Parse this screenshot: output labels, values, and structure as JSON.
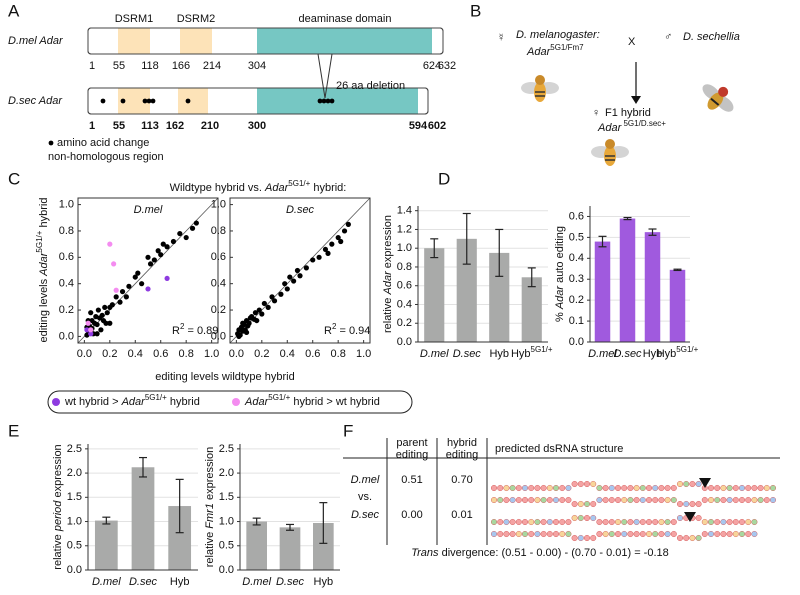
{
  "panel_labels": [
    "A",
    "B",
    "C",
    "D",
    "E",
    "F"
  ],
  "panel_a": {
    "domains": [
      "DSRM1",
      "DSRM2",
      "deaminase domain"
    ],
    "genes": [
      {
        "name": "D.mel Adar",
        "positions": [
          1,
          55,
          118,
          166,
          214,
          304,
          624,
          632
        ]
      },
      {
        "name": "D.sec Adar",
        "positions": [
          1,
          55,
          113,
          162,
          210,
          300,
          594,
          602
        ]
      }
    ],
    "deletion": "26 aa deletion",
    "legend": [
      "amino acid change",
      "non-homologous region"
    ]
  },
  "panel_b": {
    "parent1_symbol": "☿",
    "parent1_species": "D. melanogaster:",
    "parent1_genotype": [
      "Adar",
      "5G1/Fm7"
    ],
    "cross": "X",
    "parent2_symbol": "♂",
    "parent2_species": "D. sechellia",
    "offspring_symbol": "♀",
    "offspring": "F1 hybrid",
    "offspring_genotype": [
      "Adar",
      " 5G1/D.sec+"
    ]
  },
  "panel_c": {
    "title": [
      "Wildtype hybrid vs. ",
      "Adar",
      "5G1/+",
      " hybrid:"
    ],
    "ylabel": [
      "editing levels ",
      "Adar",
      "5G1/+",
      " hybrid"
    ],
    "xlabel": "editing levels wildtype hybrid",
    "legend": [
      {
        "color": "#8e3be0",
        "text": [
          "wt hybrid > ",
          "Adar",
          "5G1/+",
          " hybrid"
        ]
      },
      {
        "color": "#f48cf0",
        "text": [
          "Adar",
          "5G1/+",
          " hybrid > wt hybrid"
        ]
      }
    ]
  },
  "chart_data": [
    {
      "type": "scatter",
      "subtitle": "D.mel",
      "annotation": [
        "R",
        "2",
        " = 0.89"
      ],
      "xlim": [
        -0.05,
        1.05
      ],
      "ylim": [
        -0.05,
        1.05
      ],
      "xticks": [
        {
          "value": 0,
          "label": "0.0"
        },
        0.2,
        0.4,
        0.6,
        0.8,
        {
          "value": 1,
          "label": "1.0"
        }
      ],
      "yticks": [
        {
          "value": 0,
          "label": "0.0"
        },
        0.2,
        0.4,
        0.6,
        0.8,
        {
          "value": 1,
          "label": "1.0"
        }
      ],
      "series": [
        {
          "color": "#000000",
          "x": [
            0.02,
            0.03,
            0.05,
            0.04,
            0.06,
            0.08,
            0.1,
            0.12,
            0.03,
            0.07,
            0.09,
            0.11,
            0.14,
            0.15,
            0.18,
            0.2,
            0.22,
            0.05,
            0.13,
            0.17,
            0.25,
            0.28,
            0.3,
            0.33,
            0.35,
            0.4,
            0.42,
            0.45,
            0.5,
            0.52,
            0.55,
            0.58,
            0.6,
            0.62,
            0.65,
            0.7,
            0.75,
            0.8,
            0.85,
            0.88,
            0.02,
            0.06,
            0.1,
            0.16,
            0.2
          ],
          "values": [
            0.01,
            0.04,
            0.03,
            0.08,
            0.06,
            0.1,
            0.09,
            0.14,
            0.12,
            0.02,
            0.15,
            0.2,
            0.16,
            0.12,
            0.18,
            0.22,
            0.24,
            0.18,
            0.05,
            0.1,
            0.3,
            0.26,
            0.34,
            0.3,
            0.38,
            0.45,
            0.48,
            0.4,
            0.6,
            0.55,
            0.58,
            0.65,
            0.62,
            0.7,
            0.68,
            0.72,
            0.78,
            0.75,
            0.82,
            0.86,
            0.07,
            0.12,
            0.02,
            0.22,
            0.1
          ]
        },
        {
          "color": "#8e3be0",
          "x": [
            0.05,
            0.02,
            0.5,
            0.65
          ],
          "values": [
            0.02,
            0.05,
            0.36,
            0.44
          ]
        },
        {
          "color": "#f48cf0",
          "x": [
            0.23,
            0.2,
            0.03,
            0.25,
            0.05
          ],
          "values": [
            0.55,
            0.7,
            0.1,
            0.35,
            0.05
          ]
        }
      ]
    },
    {
      "type": "scatter",
      "subtitle": "D.sec",
      "annotation": [
        "R",
        "2",
        " = 0.94"
      ],
      "xlim": [
        -0.05,
        1.05
      ],
      "ylim": [
        -0.05,
        1.05
      ],
      "xticks": [
        {
          "value": 0,
          "label": "0.0"
        },
        0.2,
        0.4,
        0.6,
        0.8,
        {
          "value": 1,
          "label": "1.0"
        }
      ],
      "yticks": [
        {
          "value": 0,
          "label": "0.0"
        },
        0.2,
        0.4,
        0.6,
        0.8,
        {
          "value": 1,
          "label": "1.0"
        }
      ],
      "series": [
        {
          "color": "#000000",
          "x": [
            0.01,
            0.02,
            0.03,
            0.04,
            0.05,
            0.06,
            0.07,
            0.08,
            0.09,
            0.1,
            0.12,
            0.14,
            0.15,
            0.18,
            0.2,
            0.22,
            0.25,
            0.28,
            0.3,
            0.35,
            0.38,
            0.4,
            0.42,
            0.45,
            0.48,
            0.5,
            0.55,
            0.6,
            0.65,
            0.7,
            0.72,
            0.75,
            0.8,
            0.82,
            0.85,
            0.88,
            0.02,
            0.05,
            0.08,
            0.11,
            0.16
          ],
          "values": [
            0.02,
            0.05,
            0.01,
            0.07,
            0.04,
            0.09,
            0.05,
            0.12,
            0.08,
            0.1,
            0.15,
            0.13,
            0.18,
            0.2,
            0.17,
            0.25,
            0.22,
            0.3,
            0.27,
            0.32,
            0.4,
            0.36,
            0.45,
            0.42,
            0.5,
            0.46,
            0.52,
            0.58,
            0.6,
            0.66,
            0.63,
            0.7,
            0.75,
            0.72,
            0.8,
            0.85,
            0.0,
            0.1,
            0.03,
            0.14,
            0.12
          ]
        }
      ]
    },
    {
      "type": "bar",
      "ylabel": [
        "relative ",
        "Adar",
        " expression"
      ],
      "categories": [
        "D.mel",
        "D.sec",
        "Hyb",
        [
          "Hyb",
          "5G1/+"
        ]
      ],
      "values": [
        1.0,
        1.1,
        0.95,
        0.69
      ],
      "errors": [
        0.1,
        0.27,
        0.25,
        0.1
      ],
      "color": "#a9aaa9",
      "ylim": [
        0,
        1.45
      ],
      "yticks": [
        {
          "value": 0,
          "label": "0.0"
        },
        0.2,
        0.4,
        0.6,
        0.8,
        {
          "value": 1,
          "label": "1.0"
        },
        1.2,
        1.4
      ],
      "grid": true
    },
    {
      "type": "bar",
      "ylabel": [
        "% ",
        "Adar",
        " auto editing"
      ],
      "categories": [
        "D.mel",
        "D.sec",
        "Hyb",
        [
          "Hyb",
          "5G1/+"
        ]
      ],
      "values": [
        0.48,
        0.59,
        0.525,
        0.345
      ],
      "errors": [
        0.025,
        0.005,
        0.015,
        0.003
      ],
      "color": "#a05ade",
      "ylim": [
        0,
        0.65
      ],
      "yticks": [
        {
          "value": 0,
          "label": "0.0"
        },
        0.1,
        0.2,
        0.3,
        0.4,
        0.5,
        0.6
      ],
      "grid": true
    },
    {
      "type": "bar",
      "ylabel": [
        "relative ",
        "period",
        " expression"
      ],
      "categories": [
        "D.mel",
        "D.sec",
        "Hyb"
      ],
      "values": [
        1.02,
        2.12,
        1.32
      ],
      "errors": [
        0.07,
        0.2,
        0.55
      ],
      "color": "#a9aaa9",
      "ylim": [
        0,
        2.6
      ],
      "yticks": [
        {
          "value": 0,
          "label": "0.0"
        },
        0.5,
        {
          "value": 1,
          "label": "1.0"
        },
        1.5,
        {
          "value": 2,
          "label": "2.0"
        },
        2.5
      ],
      "grid": true
    },
    {
      "type": "bar",
      "ylabel": [
        "relative ",
        "Fmr1",
        " expression"
      ],
      "categories": [
        "D.mel",
        "D.sec",
        "Hyb"
      ],
      "values": [
        1.0,
        0.88,
        0.97
      ],
      "errors": [
        0.07,
        0.06,
        0.42
      ],
      "color": "#a9aaa9",
      "ylim": [
        0,
        2.6
      ],
      "yticks": [
        {
          "value": 0,
          "label": "0.0"
        },
        0.5,
        {
          "value": 1,
          "label": "1.0"
        },
        1.5,
        {
          "value": 2,
          "label": "2.0"
        },
        2.5
      ],
      "grid": true
    }
  ],
  "panel_f": {
    "headers": [
      [
        "parent",
        "editing"
      ],
      [
        "hybrid",
        "editing"
      ],
      "predicted dsRNA structure"
    ],
    "row_label": [
      "D.mel",
      "vs.",
      "D.sec"
    ],
    "values": [
      [
        "0.51",
        "0.70"
      ],
      [
        "0.00",
        "0.01"
      ]
    ],
    "formula": [
      "Trans",
      " divergence: (0.51 - 0.00) - (0.70 - 0.01) = -0.18"
    ]
  }
}
